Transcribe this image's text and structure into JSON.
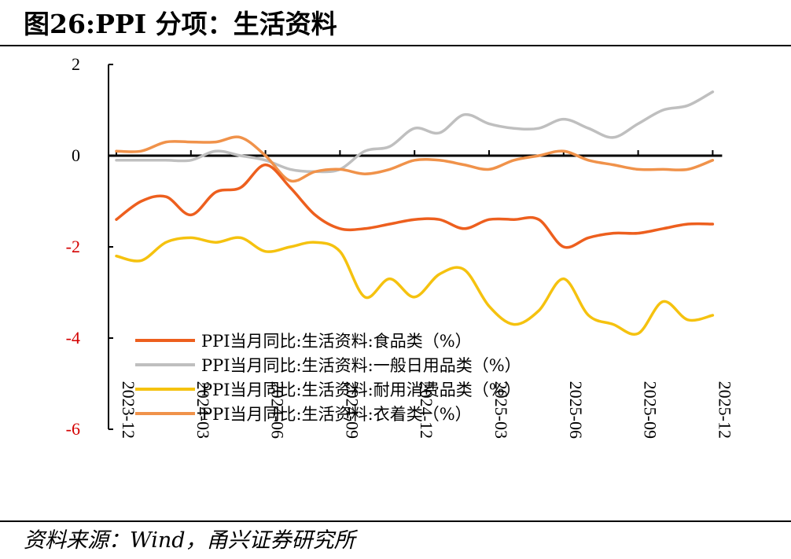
{
  "header": {
    "title": "图26:PPI 分项：生活资料"
  },
  "footer": {
    "source": "资料来源：Wind，甬兴证券研究所"
  },
  "chart_data": {
    "type": "line",
    "title": "图26:PPI 分项：生活资料",
    "xlabel": "",
    "ylabel": "",
    "ylim": [
      -6,
      2
    ],
    "yticks": [
      2,
      0,
      -2,
      -4,
      -6
    ],
    "ytick_labels": [
      "2",
      "0",
      "-2",
      "-4",
      "-6"
    ],
    "ytick_colors": [
      "#000000",
      "#000000",
      "#d40000",
      "#d40000",
      "#d40000"
    ],
    "x": [
      "2023-12",
      "2024-01",
      "2024-02",
      "2024-03",
      "2024-04",
      "2024-05",
      "2024-06",
      "2024-07",
      "2024-08",
      "2024-09",
      "2024-10",
      "2024-11",
      "2024-12",
      "2025-01",
      "2025-02",
      "2025-03",
      "2025-04",
      "2025-05",
      "2025-06",
      "2025-07",
      "2025-08",
      "2025-09",
      "2025-10",
      "2025-11",
      "2025-12"
    ],
    "xtick_labels": [
      "2023-12",
      "2024-03",
      "2024-06",
      "2024-09",
      "2024-12",
      "2025-03",
      "2025-06",
      "2025-09",
      "2025-12"
    ],
    "grid": false,
    "legend_position": "bottom-left",
    "series": [
      {
        "name": "PPI当月同比:生活资料:食品类（%）",
        "color": "#ED5F1E",
        "values": [
          -1.4,
          -1.0,
          -0.9,
          -1.3,
          -0.8,
          -0.7,
          -0.2,
          -0.7,
          -1.3,
          -1.6,
          -1.6,
          -1.5,
          -1.4,
          -1.4,
          -1.6,
          -1.4,
          -1.4,
          -1.4,
          -2.0,
          -1.8,
          -1.7,
          -1.7,
          -1.6,
          -1.5,
          -1.5
        ]
      },
      {
        "name": "PPI当月同比:生活资料:一般日用品类（%）",
        "color": "#BFBFBF",
        "values": [
          -0.1,
          -0.1,
          -0.1,
          -0.1,
          0.1,
          0.0,
          -0.1,
          -0.3,
          -0.35,
          -0.3,
          0.1,
          0.2,
          0.6,
          0.5,
          0.9,
          0.7,
          0.6,
          0.6,
          0.8,
          0.6,
          0.4,
          0.7,
          1.0,
          1.1,
          1.4
        ]
      },
      {
        "name": "PPI当月同比:生活资料:耐用消费品类（%）",
        "color": "#F5C20F",
        "values": [
          -2.2,
          -2.3,
          -1.9,
          -1.8,
          -1.9,
          -1.8,
          -2.1,
          -2.0,
          -1.9,
          -2.1,
          -3.1,
          -2.7,
          -3.1,
          -2.6,
          -2.5,
          -3.3,
          -3.7,
          -3.4,
          -2.7,
          -3.5,
          -3.7,
          -3.9,
          -3.2,
          -3.6,
          -3.5
        ]
      },
      {
        "name": "PPI当月同比:生活资料:衣着类（%）",
        "color": "#F0924A",
        "values": [
          0.1,
          0.1,
          0.3,
          0.3,
          0.3,
          0.4,
          0.0,
          -0.55,
          -0.35,
          -0.3,
          -0.4,
          -0.3,
          -0.1,
          -0.1,
          -0.2,
          -0.3,
          -0.1,
          0.0,
          0.1,
          -0.1,
          -0.2,
          -0.3,
          -0.3,
          -0.3,
          -0.1
        ]
      }
    ]
  }
}
